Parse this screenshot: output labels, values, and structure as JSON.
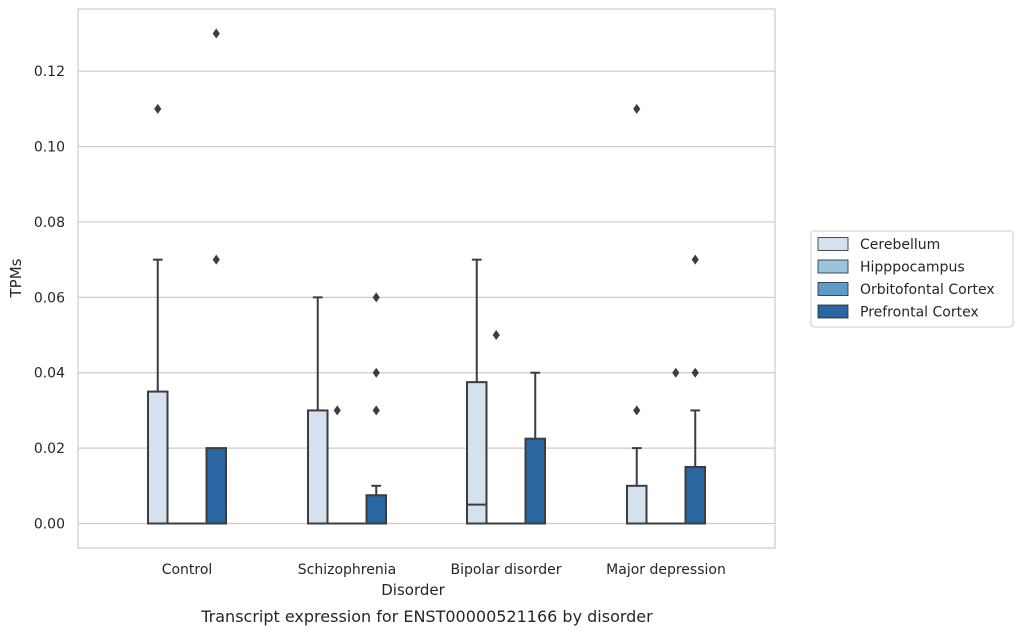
{
  "chart_data": {
    "type": "box",
    "caption": "Transcript expression for ENST00000521166 by disorder",
    "xlabel": "Disorder",
    "ylabel": "TPMs",
    "ylim": [
      -0.0065,
      0.1365
    ],
    "yticks": [
      "0.00",
      "0.02",
      "0.04",
      "0.06",
      "0.08",
      "0.10",
      "0.12"
    ],
    "ytick_values": [
      0,
      0.02,
      0.04,
      0.06,
      0.08,
      0.1,
      0.12
    ],
    "grid": "horizontal",
    "legend_position": "right",
    "categories": [
      "Control",
      "Schizophrenia",
      "Bipolar disorder",
      "Major depression"
    ],
    "series": [
      {
        "name": "Cerebellum",
        "color": "#d4e2f0",
        "boxes": [
          {
            "q1": 0,
            "median": 0,
            "q3": 0.035,
            "whisker_low": 0,
            "whisker_high": 0.07,
            "outliers": [
              0.11
            ]
          },
          {
            "q1": 0,
            "median": 0,
            "q3": 0.03,
            "whisker_low": 0,
            "whisker_high": 0.06,
            "outliers": []
          },
          {
            "q1": 0,
            "median": 0.005,
            "q3": 0.0375,
            "whisker_low": 0,
            "whisker_high": 0.07,
            "outliers": []
          },
          {
            "q1": 0,
            "median": 0,
            "q3": 0.01,
            "whisker_low": 0,
            "whisker_high": 0.02,
            "outliers": [
              0.03,
              0.11
            ]
          }
        ]
      },
      {
        "name": "Hipppocampus",
        "color": "#9cc3dc",
        "boxes": [
          {
            "q1": 0,
            "median": 0,
            "q3": 0,
            "whisker_low": 0,
            "whisker_high": 0,
            "outliers": []
          },
          {
            "q1": 0,
            "median": 0,
            "q3": 0,
            "whisker_low": 0,
            "whisker_high": 0,
            "outliers": [
              0.03
            ]
          },
          {
            "q1": 0,
            "median": 0,
            "q3": 0,
            "whisker_low": 0,
            "whisker_high": 0,
            "outliers": [
              0.05
            ]
          },
          {
            "q1": 0,
            "median": 0,
            "q3": 0,
            "whisker_low": 0,
            "whisker_high": 0,
            "outliers": []
          }
        ]
      },
      {
        "name": "Orbitofontal Cortex",
        "color": "#5d9bc9",
        "boxes": [
          {
            "q1": 0,
            "median": 0,
            "q3": 0,
            "whisker_low": 0,
            "whisker_high": 0,
            "outliers": []
          },
          {
            "q1": 0,
            "median": 0,
            "q3": 0,
            "whisker_low": 0,
            "whisker_high": 0,
            "outliers": []
          },
          {
            "q1": 0,
            "median": 0,
            "q3": 0,
            "whisker_low": 0,
            "whisker_high": 0,
            "outliers": []
          },
          {
            "q1": 0,
            "median": 0,
            "q3": 0,
            "whisker_low": 0,
            "whisker_high": 0,
            "outliers": [
              0.04
            ]
          }
        ]
      },
      {
        "name": "Prefrontal Cortex",
        "color": "#2a66a2",
        "boxes": [
          {
            "q1": 0,
            "median": 0,
            "q3": 0.02,
            "whisker_low": 0,
            "whisker_high": 0.02,
            "outliers": [
              0.07,
              0.13
            ]
          },
          {
            "q1": 0,
            "median": 0,
            "q3": 0.0075,
            "whisker_low": 0,
            "whisker_high": 0.01,
            "outliers": [
              0.03,
              0.04,
              0.06
            ]
          },
          {
            "q1": 0,
            "median": 0,
            "q3": 0.0225,
            "whisker_low": 0,
            "whisker_high": 0.04,
            "outliers": []
          },
          {
            "q1": 0,
            "median": 0,
            "q3": 0.015,
            "whisker_low": 0,
            "whisker_high": 0.03,
            "outliers": [
              0.04,
              0.07
            ]
          }
        ]
      }
    ]
  }
}
